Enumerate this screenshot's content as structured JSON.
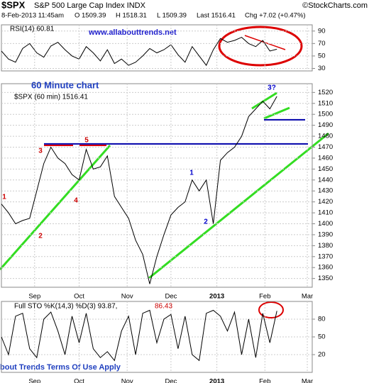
{
  "header": {
    "symbol": "$SPX",
    "name": "S&P 500 Large Cap Index INDX",
    "source": "©StockCharts.com",
    "date": "8-Feb-2013 11:45am",
    "open": "O 1509.39",
    "high": "H 1518.31",
    "low": "L 1509.39",
    "last": "Last 1516.41",
    "change": "Chg +7.02 (+0.47%)"
  },
  "footer": "bout Trends Terms Of Use Apply",
  "chart_data": [
    {
      "type": "line",
      "label": "RSI(14) 60.81",
      "annotation": "www.allabouttrends.net",
      "color": "#000000",
      "x": [
        0,
        1,
        2,
        3,
        4,
        5,
        6,
        7,
        8,
        9,
        10,
        11,
        12,
        13,
        14,
        15,
        16,
        17,
        18,
        19,
        20,
        21,
        22,
        23,
        24,
        25,
        26,
        27,
        28,
        29,
        30,
        31,
        32,
        33,
        34,
        35,
        36,
        37,
        38,
        39
      ],
      "values": [
        58,
        45,
        40,
        62,
        70,
        55,
        48,
        66,
        72,
        60,
        50,
        45,
        65,
        55,
        42,
        60,
        38,
        45,
        35,
        40,
        50,
        62,
        55,
        60,
        68,
        52,
        40,
        65,
        50,
        35,
        60,
        78,
        72,
        75,
        80,
        70,
        65,
        75,
        58,
        60.81
      ],
      "xlim": [
        0,
        44
      ],
      "ylim": [
        26,
        100
      ],
      "yticks": [
        30,
        50,
        70,
        90
      ],
      "grid": true
    },
    {
      "type": "line",
      "title": "60 Minute chart",
      "label": "$SPX (60 min) 1516.41",
      "color": "#000000",
      "x": [
        0,
        1,
        2,
        3,
        4,
        5,
        6,
        7,
        8,
        9,
        10,
        11,
        12,
        13,
        14,
        15,
        16,
        17,
        18,
        19,
        20,
        21,
        22,
        23,
        24,
        25,
        26,
        27,
        28,
        29,
        30,
        31,
        32,
        33,
        34,
        35,
        36,
        37,
        38,
        39
      ],
      "values": [
        1418,
        1410,
        1400,
        1403,
        1405,
        1430,
        1455,
        1470,
        1460,
        1455,
        1445,
        1440,
        1468,
        1450,
        1452,
        1462,
        1425,
        1415,
        1405,
        1385,
        1372,
        1345,
        1370,
        1390,
        1408,
        1415,
        1420,
        1440,
        1430,
        1440,
        1400,
        1458,
        1465,
        1470,
        1480,
        1498,
        1505,
        1512,
        1505,
        1516.41
      ],
      "levels": [
        1473,
        1495
      ],
      "level_color": "#0000aa",
      "annotations": [
        {
          "text": "1",
          "color": "#cc0000"
        },
        {
          "text": "2",
          "color": "#cc0000"
        },
        {
          "text": "3",
          "color": "#cc0000"
        },
        {
          "text": "4",
          "color": "#cc0000"
        },
        {
          "text": "5",
          "color": "#cc0000"
        },
        {
          "text": "1",
          "color": "#0000cc"
        },
        {
          "text": "2",
          "color": "#0000cc"
        },
        {
          "text": "3?",
          "color": "#0000cc"
        }
      ],
      "xlim": [
        0,
        44
      ],
      "ylim": [
        1342,
        1528
      ],
      "yticks": [
        1350,
        1360,
        1370,
        1380,
        1390,
        1400,
        1410,
        1420,
        1430,
        1440,
        1450,
        1460,
        1470,
        1480,
        1490,
        1500,
        1510,
        1520
      ],
      "xticks": [
        {
          "value": 4.7,
          "label": "Sep"
        },
        {
          "value": 11,
          "label": "Oct"
        },
        {
          "value": 17.8,
          "label": "Nov"
        },
        {
          "value": 24,
          "label": "Dec"
        },
        {
          "value": 30.5,
          "label": "2013"
        },
        {
          "value": 37.3,
          "label": "Feb"
        },
        {
          "value": 43.3,
          "label": "Mar"
        }
      ],
      "grid": true
    },
    {
      "type": "line",
      "label": "Full STO %K(14,3) %D(3) 93.87,",
      "label_d": "86.43",
      "color": "#000000",
      "x": [
        0,
        1,
        2,
        3,
        4,
        5,
        6,
        7,
        8,
        9,
        10,
        11,
        12,
        13,
        14,
        15,
        16,
        17,
        18,
        19,
        20,
        21,
        22,
        23,
        24,
        25,
        26,
        27,
        28,
        29,
        30,
        31,
        32,
        33,
        34,
        35,
        36,
        37,
        38,
        39
      ],
      "values": [
        50,
        20,
        85,
        90,
        30,
        15,
        80,
        92,
        60,
        20,
        85,
        40,
        90,
        30,
        15,
        25,
        10,
        60,
        85,
        20,
        90,
        95,
        40,
        80,
        88,
        30,
        85,
        20,
        10,
        90,
        95,
        85,
        60,
        92,
        20,
        80,
        15,
        90,
        40,
        93.87
      ],
      "xlim": [
        0,
        44
      ],
      "ylim": [
        -10,
        110
      ],
      "yticks": [
        20,
        50,
        80
      ],
      "xticks": [
        {
          "value": 4.7,
          "label": "Sep"
        },
        {
          "value": 11,
          "label": "Oct"
        },
        {
          "value": 17.8,
          "label": "Nov"
        },
        {
          "value": 24,
          "label": "Dec"
        },
        {
          "value": 30.5,
          "label": "2013"
        },
        {
          "value": 37.3,
          "label": "Feb"
        },
        {
          "value": 43.3,
          "label": "Mar"
        }
      ],
      "grid": true
    }
  ]
}
